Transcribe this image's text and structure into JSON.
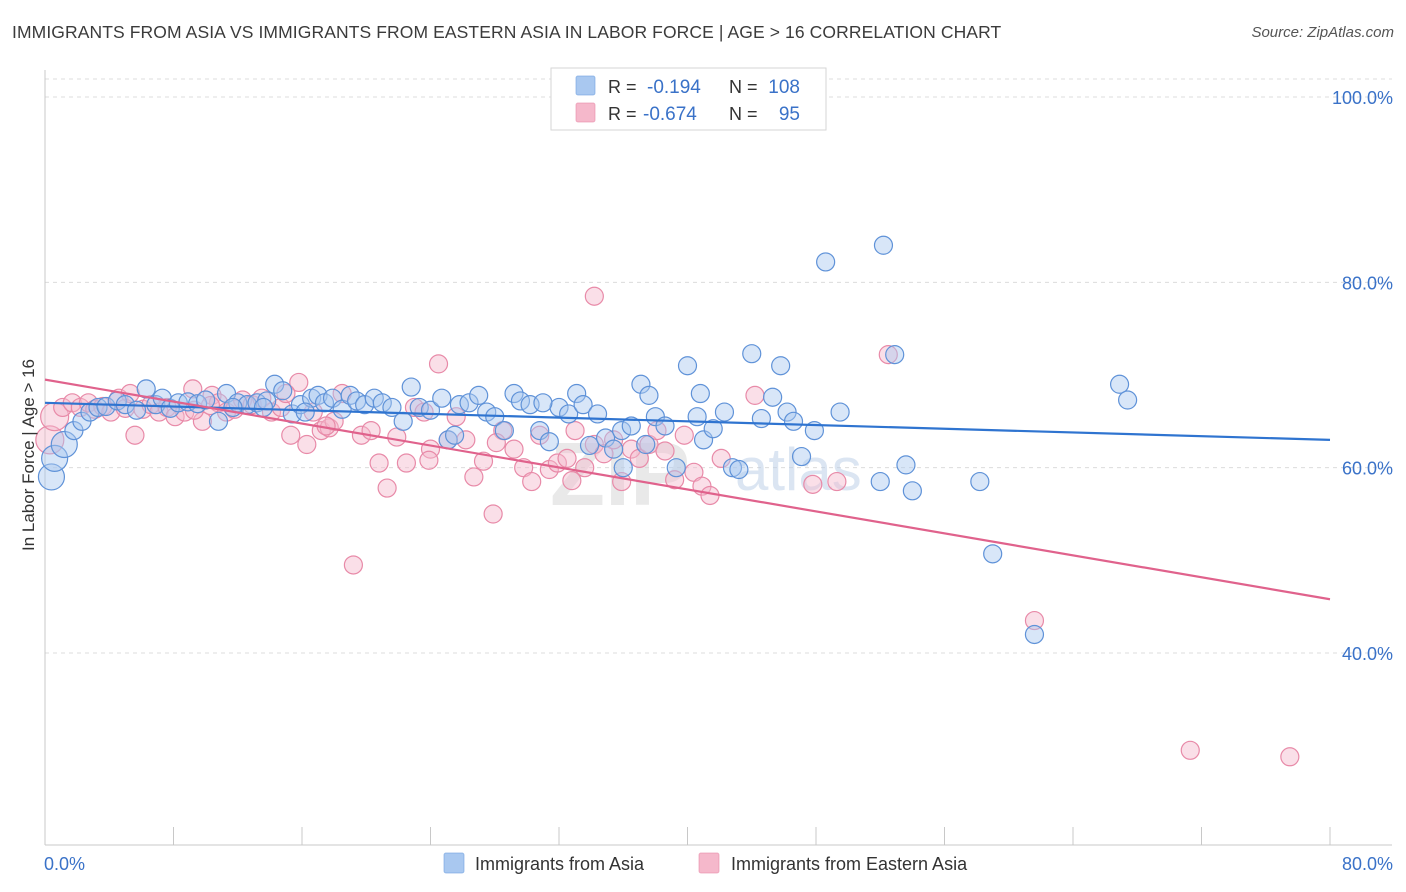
{
  "header": {
    "title": "IMMIGRANTS FROM ASIA VS IMMIGRANTS FROM EASTERN ASIA IN LABOR FORCE | AGE > 16 CORRELATION CHART",
    "source": "Source: ZipAtlas.com"
  },
  "watermark": {
    "zip": "ZIP",
    "atlas": "atlas"
  },
  "legend_top": {
    "rows": [
      {
        "r_label": "R =",
        "r_value": "-0.194",
        "n_label": "N =",
        "n_value": "108",
        "color": "#a9c8f0"
      },
      {
        "r_label": "R =",
        "r_value": "-0.674",
        "n_label": "N =",
        "n_value": "95",
        "color": "#f5b8cb"
      }
    ]
  },
  "legend_bottom": {
    "items": [
      {
        "label": "Immigrants from Asia",
        "color": "#a9c8f0"
      },
      {
        "label": "Immigrants from Eastern Asia",
        "color": "#f5b8cb"
      }
    ]
  },
  "chart_data": {
    "type": "scatter",
    "title": "IMMIGRANTS FROM ASIA VS IMMIGRANTS FROM EASTERN ASIA IN LABOR FORCE | AGE > 16 CORRELATION CHART",
    "xlabel": "",
    "ylabel": "In Labor Force | Age > 16",
    "xlim": [
      0,
      80
    ],
    "ylim": [
      20,
      104
    ],
    "x_tick_labels": [
      "0.0%",
      "80.0%"
    ],
    "y_ticks": [
      40,
      60,
      80,
      100
    ],
    "y_tick_labels": [
      "40.0%",
      "60.0%",
      "80.0%",
      "100.0%"
    ],
    "grid": true,
    "legend_position": "top-center",
    "colors": {
      "asia_point": "#a9c8f0",
      "asia_line": "#2f74d0",
      "east_point": "#f5b8cb",
      "east_line": "#e0628c"
    },
    "series": [
      {
        "name": "Immigrants from Asia",
        "trend": {
          "x": [
            0,
            80
          ],
          "y": [
            67.0,
            63.0
          ]
        },
        "points": [
          [
            0.4,
            59.0
          ],
          [
            0.6,
            61.0
          ],
          [
            1.2,
            62.5
          ],
          [
            1.8,
            64.0
          ],
          [
            2.3,
            65.0
          ],
          [
            2.8,
            66.0
          ],
          [
            3.3,
            66.5
          ],
          [
            3.8,
            66.6
          ],
          [
            4.5,
            67.2
          ],
          [
            5.0,
            66.8
          ],
          [
            5.7,
            66.2
          ],
          [
            6.3,
            68.5
          ],
          [
            6.9,
            66.8
          ],
          [
            7.3,
            67.5
          ],
          [
            7.8,
            66.4
          ],
          [
            8.3,
            67.0
          ],
          [
            8.9,
            67.1
          ],
          [
            9.5,
            66.9
          ],
          [
            10.0,
            67.3
          ],
          [
            10.8,
            65.0
          ],
          [
            11.3,
            68.0
          ],
          [
            12.0,
            67.0
          ],
          [
            12.6,
            66.8
          ],
          [
            13.2,
            67.0
          ],
          [
            13.8,
            67.2
          ],
          [
            14.3,
            69.0
          ],
          [
            14.8,
            68.3
          ],
          [
            15.4,
            65.8
          ],
          [
            15.9,
            66.8
          ],
          [
            16.6,
            67.5
          ],
          [
            17.0,
            67.8
          ],
          [
            17.4,
            67.0
          ],
          [
            17.9,
            67.5
          ],
          [
            18.5,
            66.3
          ],
          [
            19.0,
            67.8
          ],
          [
            19.4,
            67.2
          ],
          [
            19.9,
            66.8
          ],
          [
            20.5,
            67.5
          ],
          [
            21.0,
            67.0
          ],
          [
            21.6,
            66.5
          ],
          [
            22.3,
            65.0
          ],
          [
            22.8,
            68.7
          ],
          [
            23.3,
            66.5
          ],
          [
            24.0,
            66.2
          ],
          [
            24.7,
            67.5
          ],
          [
            25.1,
            63.0
          ],
          [
            25.8,
            66.8
          ],
          [
            26.4,
            67.0
          ],
          [
            27.0,
            67.8
          ],
          [
            27.5,
            66.0
          ],
          [
            28.0,
            65.5
          ],
          [
            28.6,
            64.0
          ],
          [
            29.2,
            68.0
          ],
          [
            29.6,
            67.2
          ],
          [
            30.2,
            66.8
          ],
          [
            30.8,
            64.0
          ],
          [
            31.4,
            62.8
          ],
          [
            32.0,
            66.5
          ],
          [
            32.6,
            65.8
          ],
          [
            33.1,
            68.0
          ],
          [
            33.5,
            66.8
          ],
          [
            33.9,
            62.4
          ],
          [
            34.4,
            65.8
          ],
          [
            34.9,
            63.2
          ],
          [
            35.4,
            62.0
          ],
          [
            35.9,
            64.0
          ],
          [
            36.5,
            64.5
          ],
          [
            37.1,
            69.0
          ],
          [
            37.6,
            67.8
          ],
          [
            38.0,
            65.5
          ],
          [
            38.6,
            64.5
          ],
          [
            39.3,
            60.0
          ],
          [
            40.0,
            71.0
          ],
          [
            40.6,
            65.5
          ],
          [
            41.0,
            63.0
          ],
          [
            41.6,
            64.2
          ],
          [
            42.3,
            66.0
          ],
          [
            42.8,
            60.0
          ],
          [
            43.2,
            59.8
          ],
          [
            44.0,
            72.3
          ],
          [
            44.6,
            65.3
          ],
          [
            45.3,
            67.6
          ],
          [
            45.8,
            71.0
          ],
          [
            46.2,
            66.0
          ],
          [
            46.6,
            65.0
          ],
          [
            47.1,
            61.2
          ],
          [
            47.9,
            64.0
          ],
          [
            48.6,
            82.2
          ],
          [
            52.2,
            84.0
          ],
          [
            52.0,
            58.5
          ],
          [
            52.9,
            72.2
          ],
          [
            53.6,
            60.3
          ],
          [
            54.0,
            57.5
          ],
          [
            58.2,
            58.5
          ],
          [
            59.0,
            50.7
          ],
          [
            61.6,
            42.0
          ],
          [
            66.9,
            69.0
          ],
          [
            67.4,
            67.3
          ],
          [
            11.7,
            66.5
          ],
          [
            13.6,
            66.5
          ],
          [
            16.2,
            66.0
          ],
          [
            25.5,
            63.5
          ],
          [
            31.0,
            67.0
          ],
          [
            36.0,
            60.0
          ],
          [
            49.5,
            66.0
          ],
          [
            37.4,
            62.5
          ],
          [
            40.8,
            68.0
          ]
        ]
      },
      {
        "name": "Immigrants from Eastern Asia",
        "trend": {
          "x": [
            0,
            80
          ],
          "y": [
            69.5,
            45.8
          ]
        },
        "points": [
          [
            0.3,
            63.0
          ],
          [
            0.6,
            65.5
          ],
          [
            1.1,
            66.5
          ],
          [
            1.7,
            67.0
          ],
          [
            2.2,
            66.5
          ],
          [
            2.7,
            67.0
          ],
          [
            3.1,
            66.3
          ],
          [
            3.6,
            66.6
          ],
          [
            4.1,
            66.0
          ],
          [
            4.6,
            67.5
          ],
          [
            5.0,
            66.4
          ],
          [
            5.6,
            63.5
          ],
          [
            6.1,
            66.3
          ],
          [
            6.6,
            66.8
          ],
          [
            7.1,
            66.0
          ],
          [
            7.6,
            66.5
          ],
          [
            8.1,
            65.5
          ],
          [
            8.7,
            66.0
          ],
          [
            9.2,
            68.5
          ],
          [
            9.8,
            65.0
          ],
          [
            10.4,
            67.8
          ],
          [
            10.8,
            67.0
          ],
          [
            11.3,
            66.0
          ],
          [
            11.8,
            66.3
          ],
          [
            12.3,
            67.3
          ],
          [
            12.9,
            66.8
          ],
          [
            13.5,
            67.5
          ],
          [
            14.1,
            66.0
          ],
          [
            14.7,
            66.5
          ],
          [
            15.3,
            63.5
          ],
          [
            15.8,
            69.2
          ],
          [
            16.3,
            62.5
          ],
          [
            16.7,
            66.0
          ],
          [
            17.2,
            64.0
          ],
          [
            17.7,
            64.3
          ],
          [
            18.0,
            65.0
          ],
          [
            18.5,
            68.0
          ],
          [
            19.2,
            49.5
          ],
          [
            19.7,
            63.5
          ],
          [
            20.3,
            64.0
          ],
          [
            20.8,
            60.5
          ],
          [
            21.3,
            57.8
          ],
          [
            21.9,
            63.3
          ],
          [
            22.5,
            60.5
          ],
          [
            23.0,
            66.5
          ],
          [
            23.6,
            66.0
          ],
          [
            24.0,
            62.0
          ],
          [
            24.5,
            71.2
          ],
          [
            25.1,
            63.0
          ],
          [
            25.6,
            65.5
          ],
          [
            26.2,
            63.0
          ],
          [
            26.7,
            59.0
          ],
          [
            27.3,
            60.7
          ],
          [
            27.9,
            55.0
          ],
          [
            28.5,
            64.0
          ],
          [
            29.2,
            62.0
          ],
          [
            29.8,
            60.0
          ],
          [
            30.3,
            58.5
          ],
          [
            30.8,
            63.5
          ],
          [
            31.4,
            59.8
          ],
          [
            31.9,
            60.5
          ],
          [
            32.5,
            61.0
          ],
          [
            33.0,
            64.0
          ],
          [
            33.6,
            60.0
          ],
          [
            34.2,
            62.5
          ],
          [
            34.8,
            61.5
          ],
          [
            35.4,
            63.0
          ],
          [
            35.9,
            58.5
          ],
          [
            36.5,
            62.0
          ],
          [
            37.0,
            61.0
          ],
          [
            37.6,
            62.5
          ],
          [
            38.1,
            64.0
          ],
          [
            38.6,
            61.8
          ],
          [
            39.2,
            58.7
          ],
          [
            39.8,
            63.5
          ],
          [
            40.4,
            59.5
          ],
          [
            40.9,
            58.0
          ],
          [
            41.4,
            57.0
          ],
          [
            42.1,
            61.0
          ],
          [
            44.2,
            67.8
          ],
          [
            47.8,
            58.2
          ],
          [
            49.3,
            58.5
          ],
          [
            52.5,
            72.2
          ],
          [
            61.6,
            43.5
          ],
          [
            71.3,
            29.5
          ],
          [
            77.5,
            28.8
          ],
          [
            34.2,
            78.5
          ],
          [
            17.5,
            64.5
          ],
          [
            23.9,
            60.8
          ],
          [
            28.1,
            62.7
          ],
          [
            15.0,
            68.0
          ],
          [
            10.3,
            66.7
          ],
          [
            9.3,
            66.2
          ],
          [
            32.8,
            58.6
          ],
          [
            5.3,
            68.0
          ]
        ]
      }
    ]
  }
}
